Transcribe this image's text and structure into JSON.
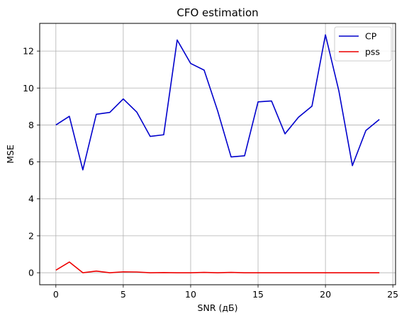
{
  "chart_data": {
    "type": "line",
    "title": "CFO estimation",
    "xlabel": "SNR (дБ)",
    "ylabel": "MSE",
    "xlim": [
      -1.2,
      25.2
    ],
    "ylim": [
      -0.65,
      13.5
    ],
    "xticks": [
      0,
      5,
      10,
      15,
      20,
      25
    ],
    "yticks": [
      0,
      2,
      4,
      6,
      8,
      10,
      12
    ],
    "grid": true,
    "legend_position": "top-right",
    "x": [
      0,
      1,
      2,
      3,
      4,
      5,
      6,
      7,
      8,
      9,
      10,
      11,
      12,
      13,
      14,
      15,
      16,
      17,
      18,
      19,
      20,
      21,
      22,
      23,
      24
    ],
    "series": [
      {
        "name": "CP",
        "color": "#0000cc",
        "values": [
          8.0,
          8.47,
          5.57,
          8.58,
          8.68,
          9.41,
          8.7,
          7.38,
          7.47,
          12.6,
          11.33,
          10.97,
          8.77,
          6.27,
          6.33,
          9.25,
          9.3,
          7.52,
          8.42,
          9.02,
          12.88,
          9.83,
          5.8,
          7.7,
          8.3
        ]
      },
      {
        "name": "pss",
        "color": "#ee0000",
        "values": [
          0.14,
          0.58,
          0.0,
          0.09,
          0.0,
          0.05,
          0.04,
          0.0,
          0.01,
          0.0,
          0.0,
          0.02,
          0.0,
          0.02,
          0.0,
          0.0,
          0.0,
          0.0,
          0.0,
          0.0,
          0.0,
          0.0,
          0.0,
          0.0,
          0.0
        ]
      }
    ]
  }
}
